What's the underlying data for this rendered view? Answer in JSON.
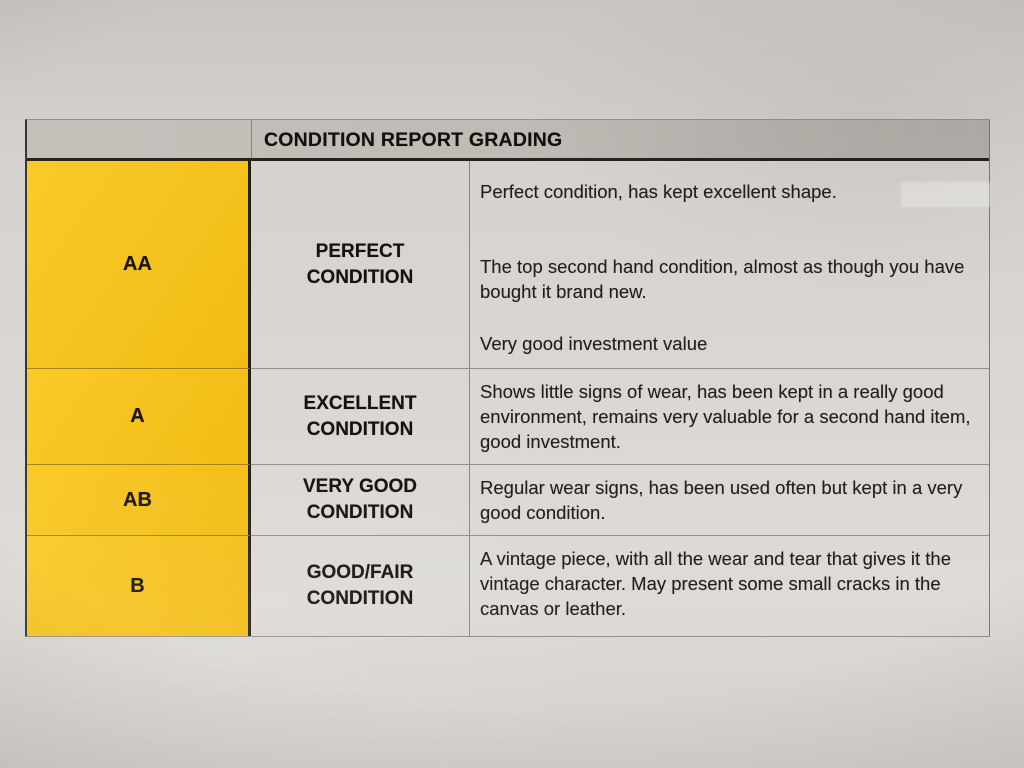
{
  "table": {
    "title": "CONDITION REPORT GRADING",
    "rows": [
      {
        "code": "AA",
        "grade": "PERFECT CONDITION",
        "paragraphs": [
          "Perfect condition, has kept excellent shape.",
          "The top second hand condition, almost as though you have bought it brand new.",
          "Very good investment value"
        ]
      },
      {
        "code": "A",
        "grade": "EXCELLENT CONDITION",
        "paragraphs": [
          "Shows little signs of wear, has been kept in a really good environment, remains very valuable for a second hand item, good investment."
        ]
      },
      {
        "code": "AB",
        "grade": "VERY GOOD CONDITION",
        "paragraphs": [
          "Regular wear signs, has been used often but kept in a very good condition."
        ]
      },
      {
        "code": "B",
        "grade": "GOOD/FAIR CONDITION",
        "paragraphs": [
          "A vintage piece, with all the wear and tear that gives it the vintage character. May present some small cracks in the canvas or leather."
        ]
      }
    ],
    "colors": {
      "code_column_bg": "#f6c31f",
      "header_bg": "#bebbb5",
      "paper_bg": "#d9d6d1",
      "border_dark": "#26231f"
    }
  }
}
